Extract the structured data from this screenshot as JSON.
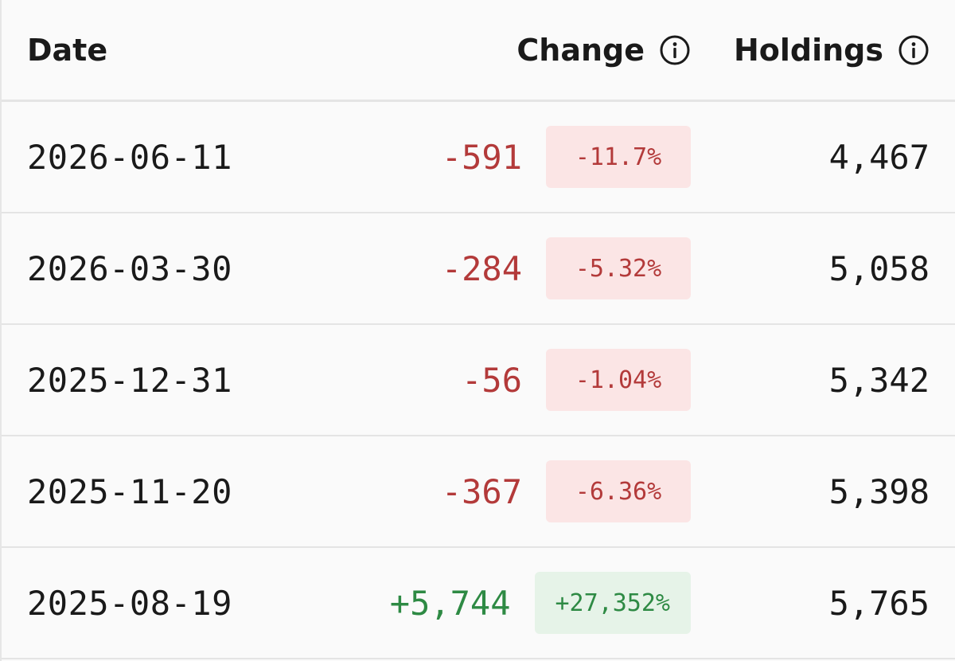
{
  "header": {
    "date_label": "Date",
    "change_label": "Change",
    "holdings_label": "Holdings",
    "change_icon": "info-icon",
    "holdings_icon": "info-icon"
  },
  "rows": [
    {
      "date": "2026-06-11",
      "change": "-591",
      "percent": "-11.7%",
      "holdings": "4,467",
      "direction": "negative"
    },
    {
      "date": "2026-03-30",
      "change": "-284",
      "percent": "-5.32%",
      "holdings": "5,058",
      "direction": "negative"
    },
    {
      "date": "2025-12-31",
      "change": "-56",
      "percent": "-1.04%",
      "holdings": "5,342",
      "direction": "negative"
    },
    {
      "date": "2025-11-20",
      "change": "-367",
      "percent": "-6.36%",
      "holdings": "5,398",
      "direction": "negative"
    },
    {
      "date": "2025-08-19",
      "change": "+5,744",
      "percent": "+27,352%",
      "holdings": "5,765",
      "direction": "positive"
    }
  ],
  "colors": {
    "negative": "#b33a3a",
    "negative_bg": "#fbe5e5",
    "positive": "#2e8a44",
    "positive_bg": "#e6f3e8"
  }
}
